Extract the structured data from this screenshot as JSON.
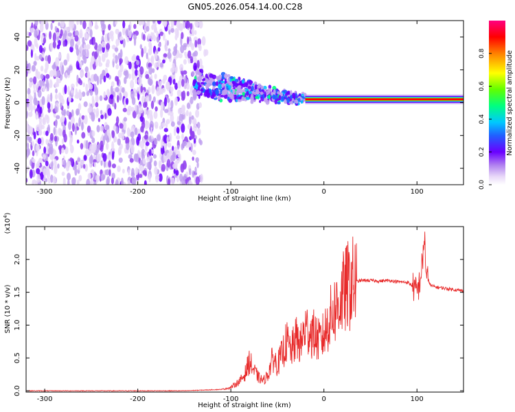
{
  "figure": {
    "title": "GN05.2026.054.14.00.C28"
  },
  "colors": {
    "snr_line": "#e82a2a",
    "axis": "#000000",
    "background": "#ffffff",
    "colormap": [
      "#ffffff",
      "#e8d8f8",
      "#c0a0f0",
      "#9040f0",
      "#6a00ff",
      "#2060ff",
      "#00c8ff",
      "#00ff80",
      "#80ff00",
      "#ffff00",
      "#ff8000",
      "#ff0000",
      "#ff0080"
    ]
  },
  "chart_data": [
    {
      "type": "heatmap",
      "title": "",
      "xlabel": "Height of straight line (km)",
      "ylabel": "Frequency (Hz)",
      "xlim": [
        -320,
        150
      ],
      "ylim": [
        -50,
        50
      ],
      "xticks": [
        -300,
        -200,
        -100,
        0,
        100
      ],
      "xtick_labels": [
        "-300",
        "-200",
        "-100",
        "0",
        "100"
      ],
      "yticks": [
        -40,
        -20,
        0,
        20,
        40
      ],
      "ytick_labels": [
        "-40",
        "-20",
        "0",
        "20",
        "40"
      ],
      "colorbar": {
        "label": "Normalized spectral amplitude",
        "range": [
          0,
          1
        ],
        "ticks": [
          0,
          0.2,
          0.4,
          0.6,
          0.8
        ],
        "tick_labels": [
          "0.0",
          "0.2",
          "0.4",
          "0.6",
          "0.8"
        ]
      },
      "description_regions": [
        {
          "x_range": [
            -320,
            -140
          ],
          "freq_range": [
            -50,
            50
          ],
          "amplitude": 0.12,
          "pattern": "scattered noise"
        },
        {
          "x_range": [
            -140,
            -20
          ],
          "freq_range": [
            -10,
            25
          ],
          "amplitude": 0.3,
          "pattern": "converging signal"
        },
        {
          "x_range": [
            -20,
            150
          ],
          "freq_range": [
            0,
            3
          ],
          "amplitude": 0.95,
          "pattern": "stable carrier line near 2 Hz"
        }
      ]
    },
    {
      "type": "line",
      "title": "",
      "xlabel": "Height of straight line (km)",
      "ylabel": "SNR (10 * v/v)",
      "y_multiplier_label": "(x10",
      "y_multiplier_exp": "4",
      "xlim": [
        -320,
        150
      ],
      "ylim": [
        -0.02,
        2.5
      ],
      "xticks": [
        -300,
        -200,
        -100,
        0,
        100
      ],
      "xtick_labels": [
        "-300",
        "-200",
        "-100",
        "0",
        "100"
      ],
      "yticks": [
        0.0,
        0.5,
        1.0,
        1.5,
        2.0
      ],
      "ytick_labels": [
        "0.0",
        "0.5",
        "1.0",
        "1.5",
        "2.0"
      ],
      "series": [
        {
          "name": "SNR",
          "x": [
            -320,
            -250,
            -200,
            -150,
            -130,
            -110,
            -100,
            -95,
            -90,
            -85,
            -80,
            -75,
            -70,
            -65,
            -60,
            -55,
            -50,
            -45,
            -40,
            -35,
            -30,
            -25,
            -20,
            -15,
            -10,
            -5,
            0,
            5,
            10,
            15,
            20,
            25,
            30,
            35,
            40,
            50,
            60,
            70,
            80,
            90,
            95,
            100,
            103,
            105,
            107,
            108,
            110,
            115,
            120,
            130,
            140,
            150
          ],
          "y": [
            0.0,
            0.0,
            0.0,
            0.0,
            0.01,
            0.02,
            0.05,
            0.1,
            0.15,
            0.25,
            0.45,
            0.3,
            0.2,
            0.15,
            0.25,
            0.5,
            0.4,
            0.55,
            0.75,
            0.6,
            0.8,
            0.7,
            0.95,
            0.9,
            0.85,
            0.75,
            0.85,
            1.05,
            1.2,
            1.3,
            1.45,
            1.58,
            1.63,
            1.66,
            1.68,
            1.68,
            1.67,
            1.68,
            1.66,
            1.65,
            1.6,
            1.5,
            1.65,
            1.85,
            2.1,
            2.4,
            1.75,
            1.6,
            1.58,
            1.56,
            1.54,
            1.52
          ]
        }
      ]
    }
  ]
}
